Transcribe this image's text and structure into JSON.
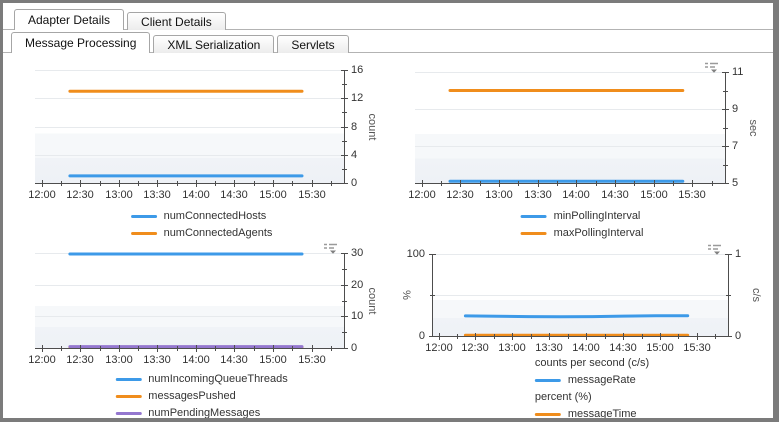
{
  "tabs": {
    "outer": [
      {
        "label": "Adapter Details",
        "selected": true
      },
      {
        "label": "Client Details",
        "selected": false
      }
    ],
    "inner": [
      {
        "label": "Message Processing",
        "selected": true
      },
      {
        "label": "XML Serialization",
        "selected": false
      },
      {
        "label": "Servlets",
        "selected": false
      }
    ]
  },
  "icons": {
    "chart_menu": "chart-options-menu (list lines with down caret)"
  },
  "colors": {
    "series_blue": "#3d9ae8",
    "series_orange": "#f08d1c",
    "series_purple": "#9477cf",
    "axis": "#4d4d4d",
    "grid": "#e7eaed",
    "plot_band": "#f2f5f9"
  },
  "chart_data": [
    {
      "type": "line",
      "position": "top-left",
      "title": "",
      "xlabel": "",
      "x_tick_labels": [
        "12:00",
        "12:30",
        "13:00",
        "13:30",
        "14:00",
        "14:30",
        "15:00",
        "15:30"
      ],
      "axes": {
        "right": {
          "title": "count",
          "lim": [
            0,
            16
          ],
          "major_values": [
            0,
            4,
            8,
            12,
            16
          ],
          "major_labels": [
            "0",
            "4",
            "8",
            "12",
            "16"
          ],
          "minor_values": [
            2,
            6,
            10,
            14
          ]
        }
      },
      "gridline_values": [
        4,
        8,
        12,
        16
      ],
      "series": [
        {
          "name": "numConnectedHosts",
          "color": "#3d9ae8",
          "axis": "right",
          "values": [
            1,
            1
          ]
        },
        {
          "name": "numConnectedAgents",
          "color": "#f08d1c",
          "axis": "right",
          "values": [
            13,
            13
          ]
        }
      ],
      "legend": [
        {
          "label": "numConnectedHosts",
          "color": "#3d9ae8"
        },
        {
          "label": "numConnectedAgents",
          "color": "#f08d1c"
        }
      ],
      "legend_position": "bottom",
      "menu_icon": false
    },
    {
      "type": "line",
      "position": "top-right",
      "title": "",
      "xlabel": "",
      "x_tick_labels": [
        "12:00",
        "12:30",
        "13:00",
        "13:30",
        "14:00",
        "14:30",
        "15:00",
        "15:30"
      ],
      "axes": {
        "right": {
          "title": "sec",
          "lim": [
            5,
            11
          ],
          "major_values": [
            5,
            7,
            9,
            11
          ],
          "major_labels": [
            "5",
            "7",
            "9",
            "11"
          ],
          "minor_values": [
            6,
            8,
            10
          ]
        }
      },
      "gridline_values": [
        7,
        9,
        11
      ],
      "series": [
        {
          "name": "minPollingInterval",
          "color": "#3d9ae8",
          "axis": "right",
          "values": [
            5.1,
            5.1
          ]
        },
        {
          "name": "maxPollingInterval",
          "color": "#f08d1c",
          "axis": "right",
          "values": [
            10,
            10
          ]
        }
      ],
      "legend": [
        {
          "label": "minPollingInterval",
          "color": "#3d9ae8"
        },
        {
          "label": "maxPollingInterval",
          "color": "#f08d1c"
        }
      ],
      "legend_position": "bottom",
      "menu_icon": true
    },
    {
      "type": "line",
      "position": "bottom-left",
      "title": "",
      "xlabel": "",
      "x_tick_labels": [
        "12:00",
        "12:30",
        "13:00",
        "13:30",
        "14:00",
        "14:30",
        "15:00",
        "15:30"
      ],
      "axes": {
        "right": {
          "title": "count",
          "lim": [
            0,
            30
          ],
          "major_values": [
            0,
            10,
            20,
            30
          ],
          "major_labels": [
            "0",
            "10",
            "20",
            "30"
          ],
          "minor_values": [
            5,
            15,
            25
          ]
        }
      },
      "gridline_values": [
        10,
        20,
        30
      ],
      "series": [
        {
          "name": "numIncomingQueueThreads",
          "color": "#3d9ae8",
          "axis": "right",
          "values": [
            29.7,
            29.7
          ]
        },
        {
          "name": "messagesPushed",
          "color": "#f08d1c",
          "axis": "right",
          "values": [
            0.2,
            0.2
          ]
        },
        {
          "name": "numPendingMessages",
          "color": "#9477cf",
          "axis": "right",
          "values": [
            0.45,
            0.45
          ]
        }
      ],
      "legend": [
        {
          "label": "numIncomingQueueThreads",
          "color": "#3d9ae8"
        },
        {
          "label": "messagesPushed",
          "color": "#f08d1c"
        },
        {
          "label": "numPendingMessages",
          "color": "#9477cf"
        }
      ],
      "legend_position": "bottom",
      "menu_icon": true
    },
    {
      "type": "line",
      "position": "bottom-right",
      "title": "",
      "xlabel": "",
      "x_tick_labels": [
        "12:00",
        "12:30",
        "13:00",
        "13:30",
        "14:00",
        "14:30",
        "15:00",
        "15:30"
      ],
      "axes": {
        "left": {
          "title": "%",
          "lim": [
            0,
            100
          ],
          "major_values": [
            0,
            100
          ],
          "major_labels": [
            "0",
            "100"
          ],
          "minor_values": [
            50
          ]
        },
        "right": {
          "title": "c/s",
          "lim": [
            0,
            1
          ],
          "major_values": [
            0,
            1
          ],
          "major_labels": [
            "0",
            "1"
          ],
          "minor_values": [
            0.5
          ]
        }
      },
      "gridline_values": [
        0.5,
        1
      ],
      "series": [
        {
          "name": "messageRate",
          "color": "#3d9ae8",
          "axis": "right",
          "values": [
            0.245,
            0.242,
            0.237,
            0.234,
            0.237,
            0.243,
            0.246,
            0.246
          ]
        },
        {
          "name": "messageTime",
          "color": "#f08d1c",
          "axis": "left",
          "values": [
            0.8,
            0.8
          ]
        }
      ],
      "legend": [
        {
          "header": "counts per second (c/s)"
        },
        {
          "label": "messageRate",
          "color": "#3d9ae8"
        },
        {
          "header": "percent (%)"
        },
        {
          "label": "messageTime",
          "color": "#f08d1c"
        }
      ],
      "legend_position": "bottom",
      "menu_icon": true
    }
  ]
}
